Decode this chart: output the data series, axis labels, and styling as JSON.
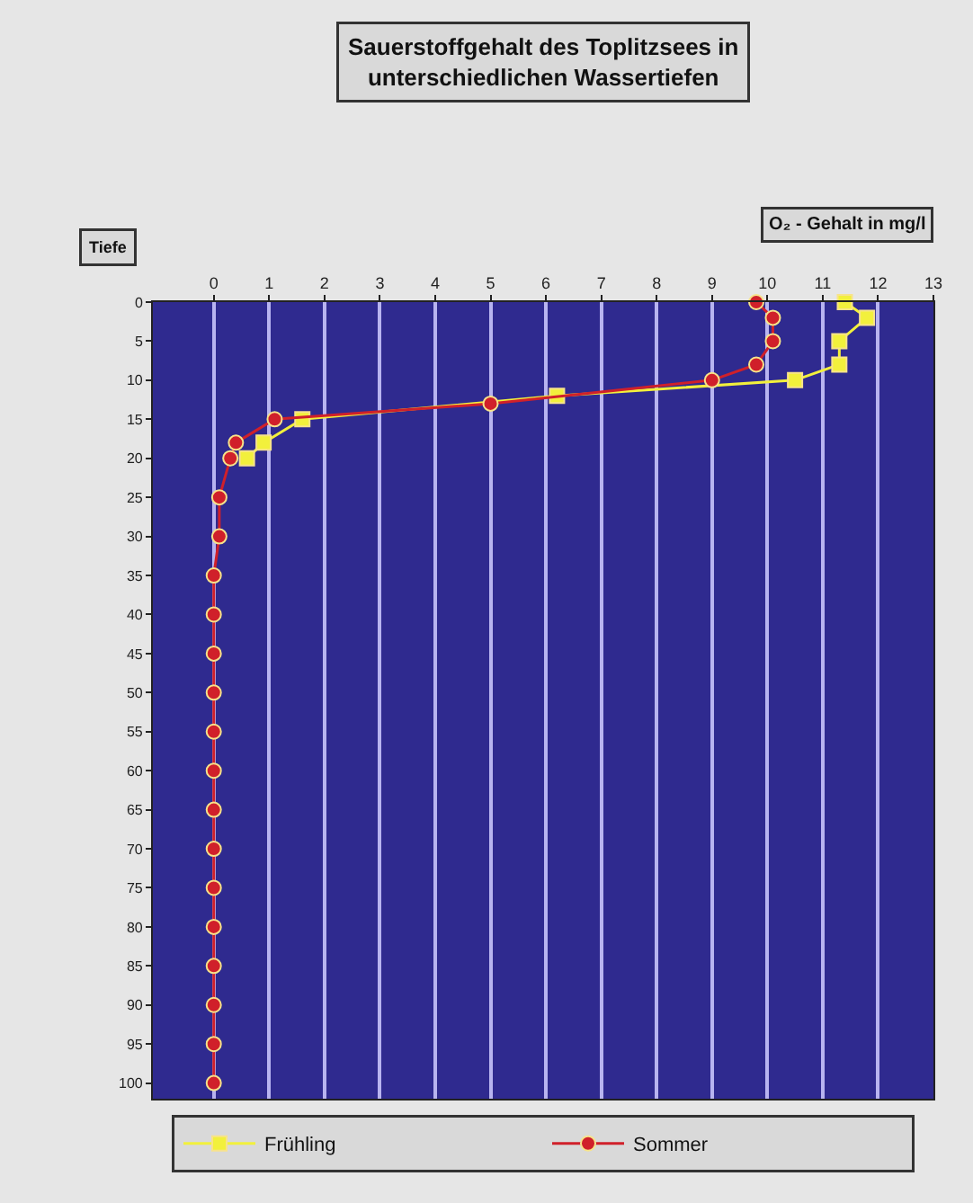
{
  "chart_data": {
    "type": "line",
    "title": "Sauerstoffgehalt des Toplitzsees in unterschiedlichen Wassertiefen",
    "xlabel": "O₂ - Gehalt in mg/l",
    "ylabel": "Tiefe",
    "series": [
      {
        "name": "Frühling",
        "color": "#f2f03c",
        "marker": "square",
        "x": [
          11.4,
          11.8,
          11.3,
          11.3,
          10.5,
          6.2,
          1.6,
          0.9,
          0.6
        ],
        "values": [
          0,
          2,
          5,
          8,
          10,
          12,
          15,
          18,
          20
        ]
      },
      {
        "name": "Sommer",
        "color": "#d0202a",
        "marker": "circle",
        "x": [
          9.8,
          10.1,
          10.1,
          9.8,
          9.0,
          5.0,
          1.1,
          0.4,
          0.3,
          0.1,
          0.1,
          0,
          0,
          0,
          0,
          0,
          0,
          0,
          0,
          0,
          0,
          0,
          0,
          0,
          0
        ],
        "values": [
          0,
          2,
          5,
          8,
          10,
          13,
          15,
          18,
          20,
          25,
          30,
          35,
          40,
          45,
          50,
          55,
          60,
          65,
          70,
          75,
          80,
          85,
          90,
          95,
          100
        ]
      }
    ],
    "xlim": [
      -1.1,
      13
    ],
    "xticks": [
      0,
      1,
      2,
      3,
      4,
      5,
      6,
      7,
      8,
      9,
      10,
      11,
      12,
      13
    ],
    "ylim": [
      102,
      0
    ],
    "yticks": [
      0,
      5,
      10,
      15,
      20,
      25,
      30,
      35,
      40,
      45,
      50,
      55,
      60,
      65,
      70,
      75,
      80,
      85,
      90,
      95,
      100
    ],
    "grid": "x",
    "legend": "bottom",
    "line_style": "solid"
  }
}
